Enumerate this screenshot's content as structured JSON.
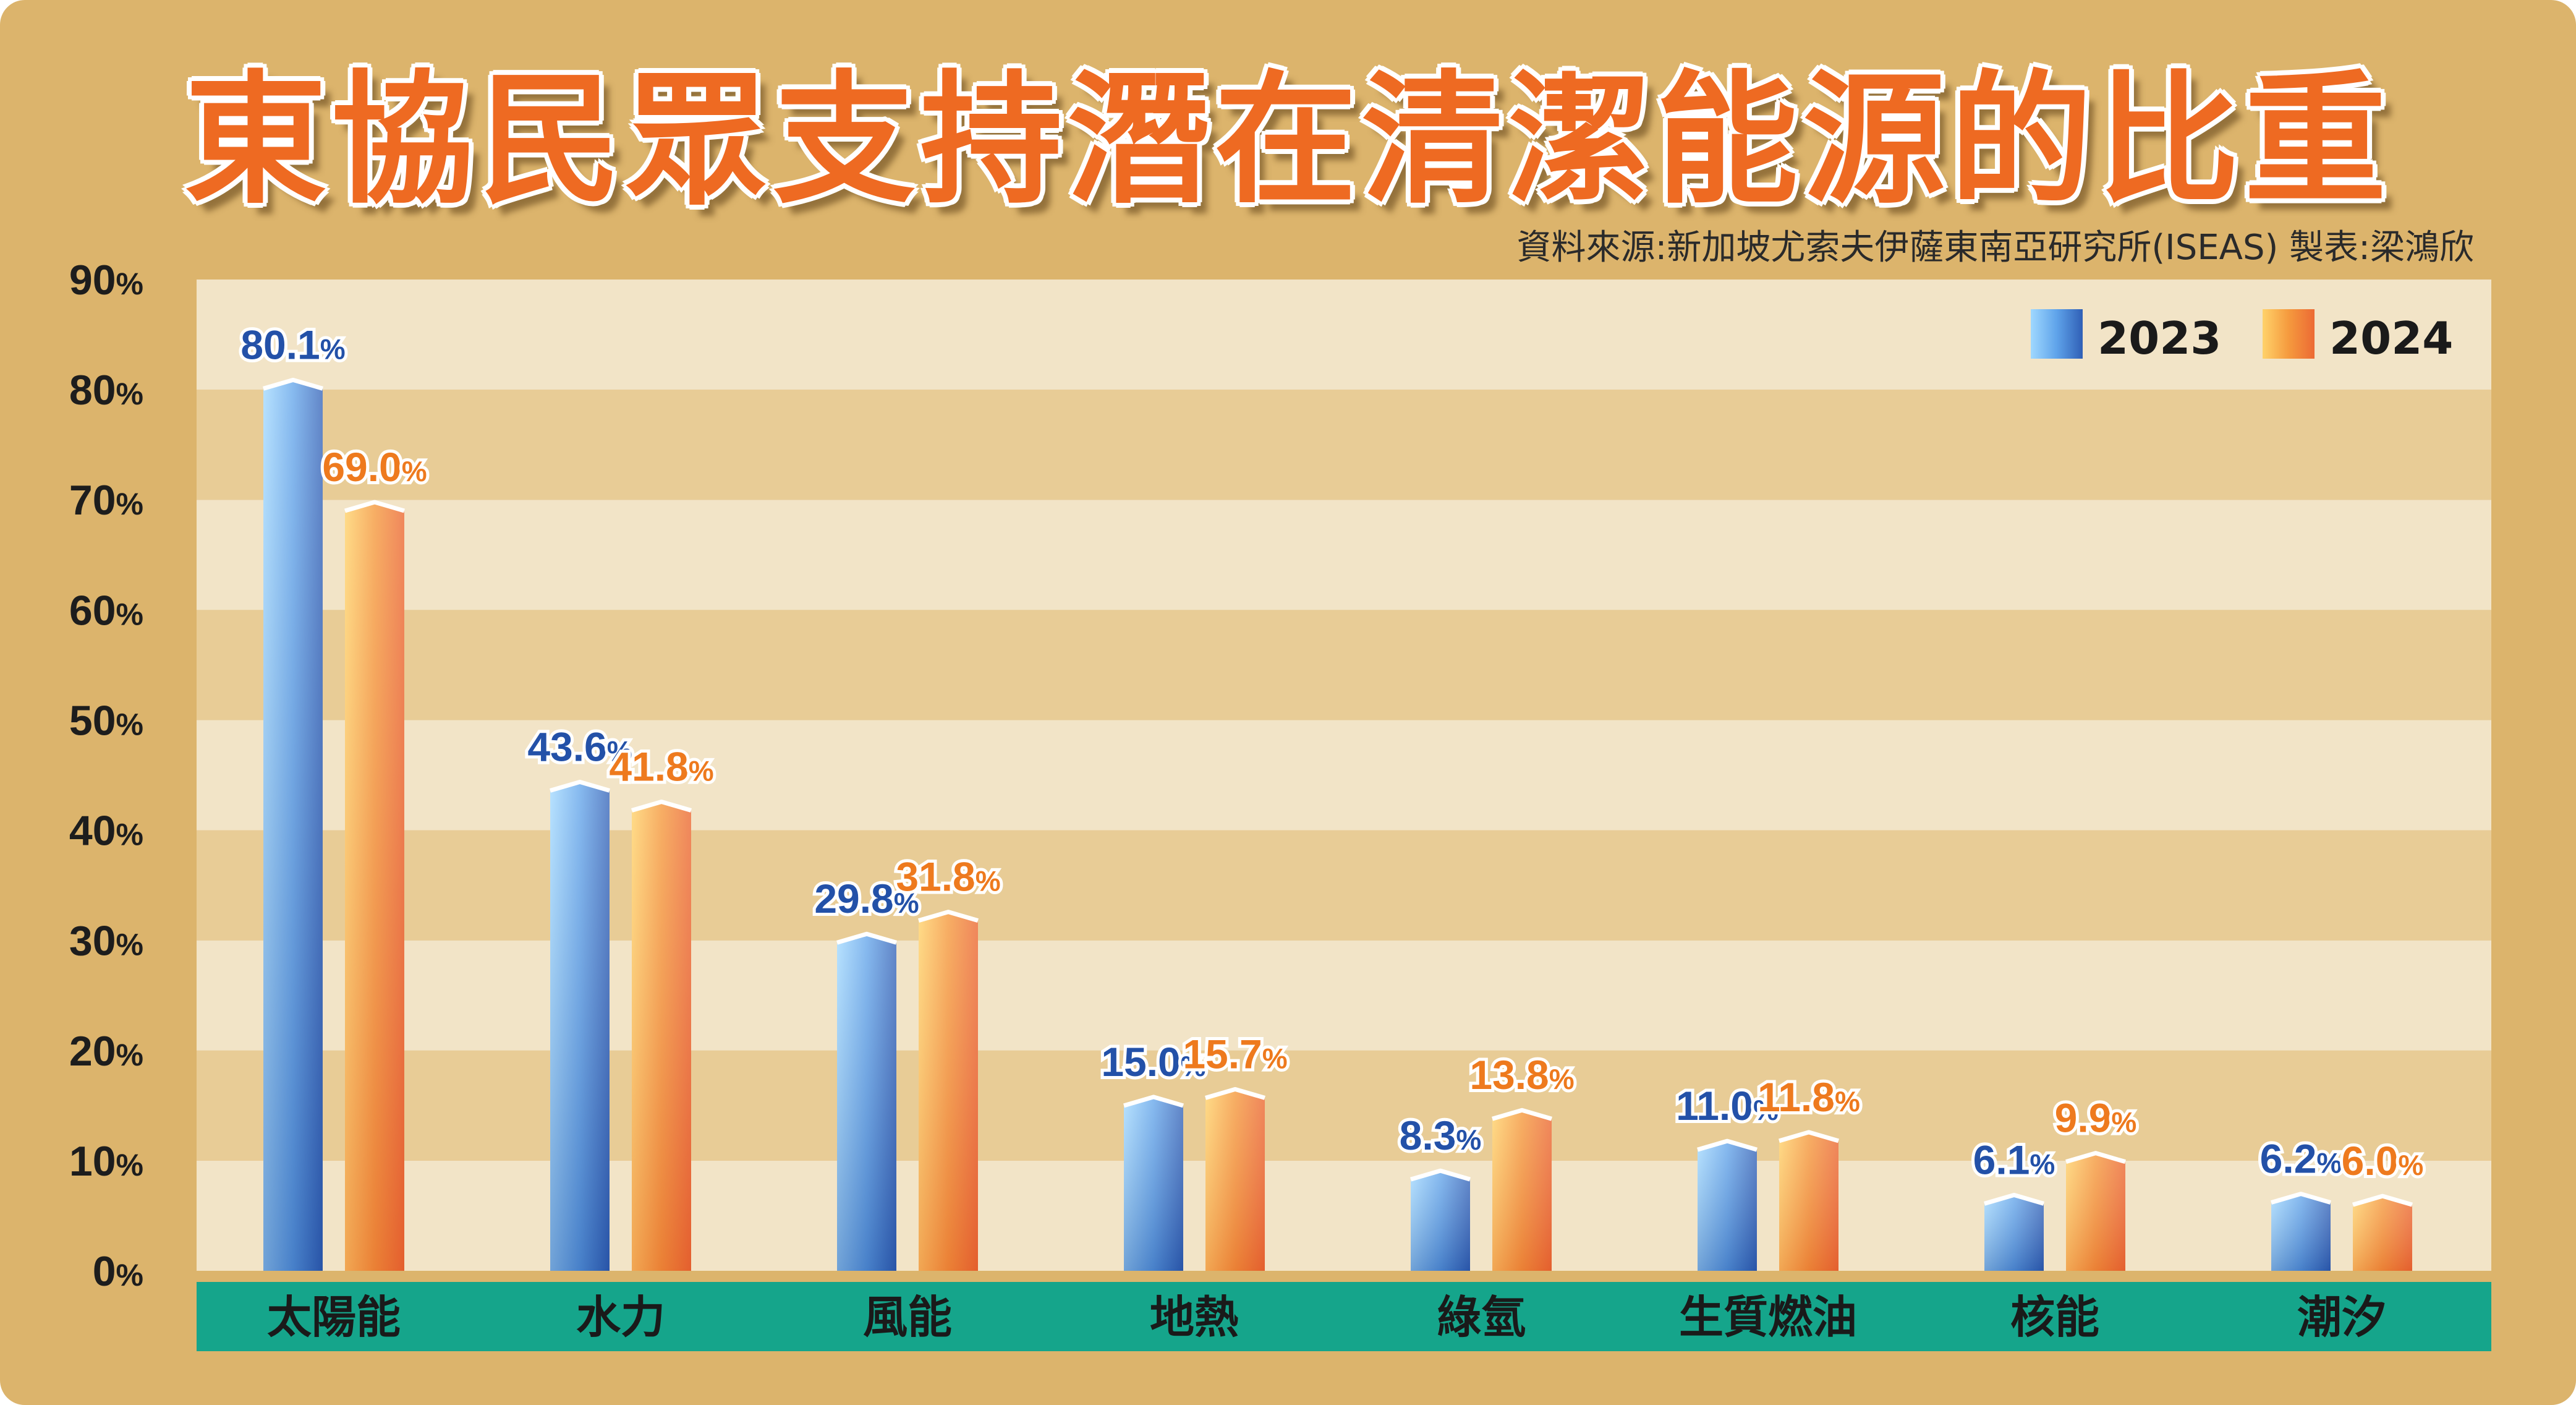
{
  "title": "東協民眾支持潛在清潔能源的比重",
  "source": "資料來源:新加坡尤索夫伊薩東南亞研究所(ISEAS)  製表:梁鴻欣",
  "colors": {
    "frame": "#dcb46c",
    "band_light": "#f2e4c7",
    "band_dark": "#e8cc96",
    "category_bar": "#15a58b",
    "series_2023": "#3b7fd6",
    "series_2024": "#f08a3c",
    "title": "#ee6a22"
  },
  "chart_data": {
    "type": "bar",
    "title": "東協民眾支持潛在清潔能源的比重",
    "categories": [
      "太陽能",
      "水力",
      "風能",
      "地熱",
      "綠氫",
      "生質燃油",
      "核能",
      "潮汐"
    ],
    "series": [
      {
        "name": "2023",
        "values": [
          80.1,
          43.6,
          29.8,
          15.0,
          8.3,
          11.0,
          6.1,
          6.2
        ]
      },
      {
        "name": "2024",
        "values": [
          69.0,
          41.8,
          31.8,
          15.7,
          13.8,
          11.8,
          9.9,
          6.0
        ]
      }
    ],
    "y_ticks": [
      "0%",
      "10%",
      "20%",
      "30%",
      "40%",
      "50%",
      "60%",
      "70%",
      "80%",
      "90%"
    ],
    "ylim": [
      0,
      90
    ],
    "value_suffix": "%",
    "legend_position": "top-right",
    "grid": "alternating bands"
  }
}
